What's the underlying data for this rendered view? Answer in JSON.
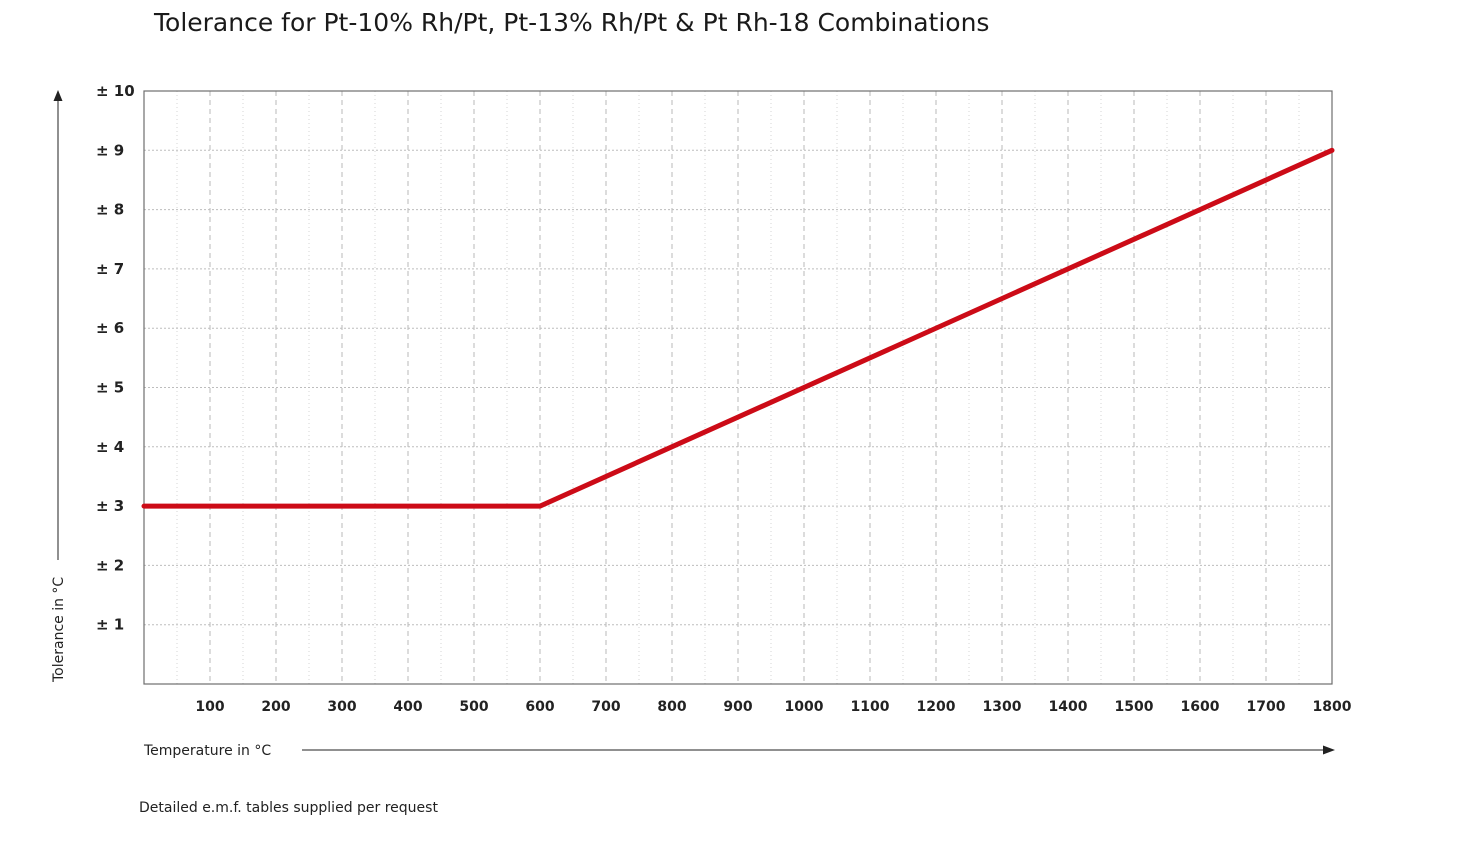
{
  "chart_data": {
    "type": "line",
    "title": "Tolerance for Pt-10% Rh/Pt, Pt-13% Rh/Pt & Pt Rh-18 Combinations",
    "xlabel": "Temperature in °C",
    "ylabel": "Tolerance in °C",
    "footnote": "Detailed e.m.f. tables supplied per request",
    "x_ticks": [
      "100",
      "200",
      "300",
      "400",
      "500",
      "600",
      "700",
      "800",
      "900",
      "1000",
      "1100",
      "1200",
      "1300",
      "1400",
      "1500",
      "1600",
      "1700",
      "1800"
    ],
    "x_tick_values": [
      100,
      200,
      300,
      400,
      500,
      600,
      700,
      800,
      900,
      1000,
      1100,
      1200,
      1300,
      1400,
      1500,
      1600,
      1700,
      1800
    ],
    "y_ticks": [
      "± 1",
      "± 2",
      "± 3",
      "± 4",
      "± 5",
      "± 6",
      "± 7",
      "± 8",
      "± 9",
      "± 10"
    ],
    "y_tick_values": [
      1,
      2,
      3,
      4,
      5,
      6,
      7,
      8,
      9,
      10
    ],
    "xlim": [
      0,
      1800
    ],
    "ylim": [
      0,
      10
    ],
    "grid": true,
    "series": [
      {
        "name": "Tolerance",
        "color": "#cc0b17",
        "x": [
          0,
          600,
          1800
        ],
        "y": [
          3,
          3,
          9
        ]
      }
    ]
  }
}
